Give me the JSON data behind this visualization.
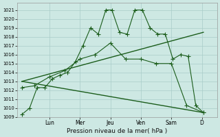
{
  "bg_color": "#cde8e3",
  "grid_color": "#a8ccc8",
  "line_color": "#1a5c1a",
  "xlabel": "Pression niveau de la mer( hPa )",
  "ylim": [
    1009,
    1021.8
  ],
  "yticks": [
    1009,
    1010,
    1011,
    1012,
    1013,
    1014,
    1015,
    1016,
    1017,
    1018,
    1019,
    1020,
    1021
  ],
  "xlim": [
    -0.05,
    6.5
  ],
  "day_labels": [
    "Lun",
    "Mer",
    "Jeu",
    "Ven",
    "Sam",
    "D"
  ],
  "day_positions": [
    1.0,
    2.0,
    3.0,
    4.0,
    5.0,
    6.0
  ],
  "series": [
    {
      "x": [
        0.1,
        0.35,
        0.6,
        0.85,
        1.1,
        1.35,
        1.6,
        1.85,
        2.1,
        2.35,
        2.6,
        2.85,
        3.05,
        3.3,
        3.55,
        3.8,
        4.05,
        4.3,
        4.55,
        4.8,
        5.05,
        5.3,
        5.55,
        5.8,
        6.05
      ],
      "y": [
        1009.3,
        1010.0,
        1012.3,
        1012.3,
        1013.3,
        1013.7,
        1014.0,
        1015.2,
        1017.0,
        1019.0,
        1018.3,
        1021.0,
        1021.0,
        1018.5,
        1018.3,
        1021.0,
        1021.0,
        1019.0,
        1018.3,
        1018.3,
        1015.5,
        1016.0,
        1015.8,
        1010.3,
        1009.5
      ],
      "marker": "+",
      "markersize": 4,
      "linewidth": 0.8,
      "linestyle": "-"
    },
    {
      "x": [
        0.1,
        0.5,
        1.0,
        1.5,
        2.0,
        2.5,
        3.0,
        3.5,
        4.0,
        4.5,
        5.0,
        5.5,
        6.05
      ],
      "y": [
        1012.3,
        1012.5,
        1013.5,
        1014.2,
        1015.5,
        1016.0,
        1017.3,
        1015.5,
        1015.5,
        1015.0,
        1015.0,
        1010.3,
        1009.5
      ],
      "marker": "+",
      "markersize": 4,
      "linewidth": 0.8,
      "linestyle": "-"
    },
    {
      "x": [
        0.1,
        6.05
      ],
      "y": [
        1013.0,
        1018.5
      ],
      "marker": null,
      "markersize": 0,
      "linewidth": 1.0,
      "linestyle": "-"
    },
    {
      "x": [
        0.1,
        6.05
      ],
      "y": [
        1013.0,
        1009.5
      ],
      "marker": null,
      "markersize": 0,
      "linewidth": 1.0,
      "linestyle": "-"
    }
  ]
}
